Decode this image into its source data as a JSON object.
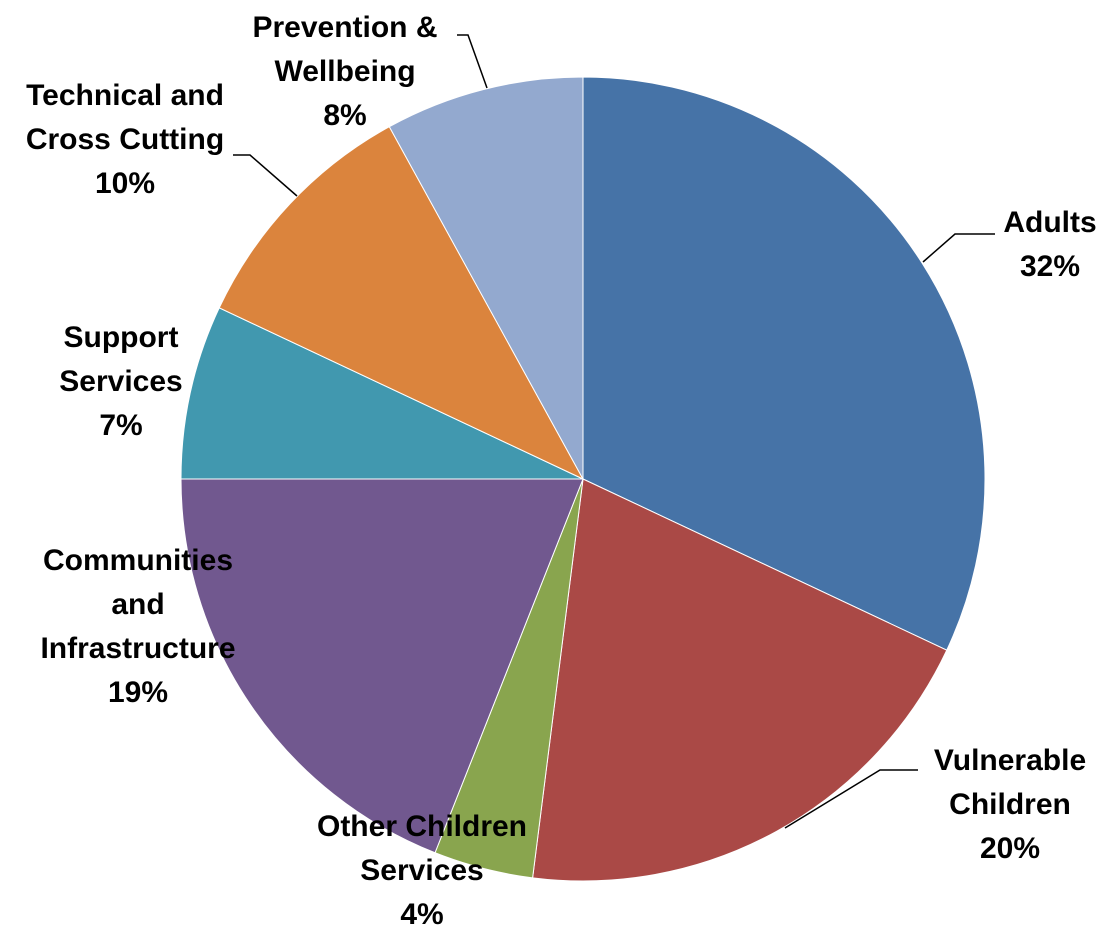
{
  "chart_data": {
    "type": "pie",
    "start_angle_deg": 0,
    "direction": "clockwise",
    "slices": [
      {
        "name": "Adults",
        "value": 32,
        "label": "32%",
        "color": "#4673A7",
        "label_lines": [
          "Adults",
          "32%"
        ]
      },
      {
        "name": "Vulnerable Children",
        "value": 20,
        "label": "20%",
        "color": "#AA4946",
        "label_lines": [
          "Vulnerable",
          "Children",
          "20%"
        ]
      },
      {
        "name": "Other Children Services",
        "value": 4,
        "label": "4%",
        "color": "#89A54E",
        "label_lines": [
          "Other Children",
          "Services",
          "4%"
        ]
      },
      {
        "name": "Communities and Infrastructure",
        "value": 19,
        "label": "19%",
        "color": "#71588F",
        "label_lines": [
          "Communities",
          "and",
          "Infrastructure",
          "19%"
        ]
      },
      {
        "name": "Support Services",
        "value": 7,
        "label": "7%",
        "color": "#4198AF",
        "label_lines": [
          "Support",
          "Services",
          "7%"
        ]
      },
      {
        "name": "Technical and Cross Cutting",
        "value": 10,
        "label": "10%",
        "color": "#DB843D",
        "label_lines": [
          "Technical and",
          "Cross Cutting",
          "10%"
        ]
      },
      {
        "name": "Prevention & Wellbeing",
        "value": 8,
        "label": "8%",
        "color": "#93A9CF",
        "label_lines": [
          "Prevention &",
          "Wellbeing",
          "8%"
        ]
      }
    ]
  }
}
